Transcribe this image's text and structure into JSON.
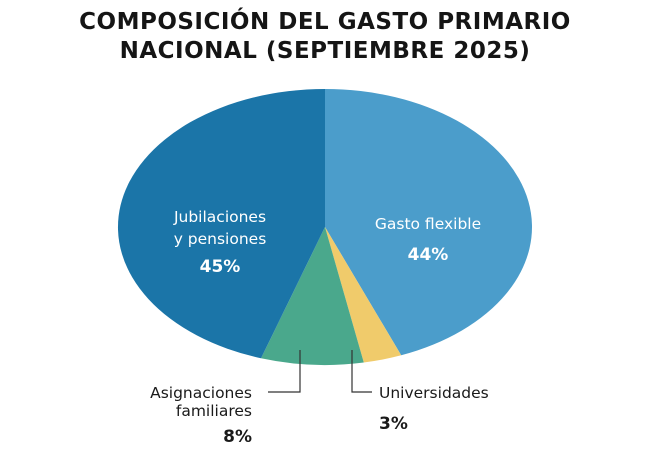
{
  "title_lines": [
    "COMPOSICIÓN DEL GASTO PRIMARIO",
    "NACIONAL (SEPTIEMBRE 2025)"
  ],
  "chart_data": {
    "type": "pie",
    "title": "COMPOSICIÓN DEL GASTO PRIMARIO NACIONAL (SEPTIEMBRE 2025)",
    "slices": [
      {
        "name": "Gasto flexible",
        "label_lines": [
          "Gasto flexible"
        ],
        "value_label": "44%",
        "value": 44,
        "color": "#4b9dcb",
        "label_position": "inside"
      },
      {
        "name": "Universidades",
        "label_lines": [
          "Universidades"
        ],
        "value_label": "3%",
        "value": 3,
        "color": "#f0cb6b",
        "label_position": "outside"
      },
      {
        "name": "Asignaciones familiares",
        "label_lines": [
          "Asignaciones",
          "familiares"
        ],
        "value_label": "8%",
        "value": 8,
        "color": "#4aa88c",
        "label_position": "outside"
      },
      {
        "name": "Jubilaciones y pensiones",
        "label_lines": [
          "Jubilaciones",
          "y pensiones"
        ],
        "value_label": "45%",
        "value": 45,
        "color": "#1b75a8",
        "label_position": "inside"
      }
    ]
  }
}
